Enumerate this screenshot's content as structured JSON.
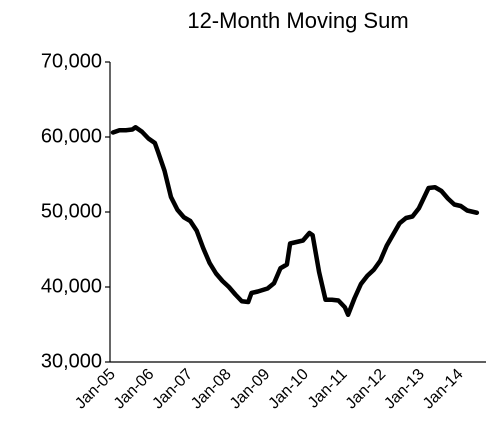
{
  "chart_data": {
    "type": "line",
    "title": "12-Month Moving Sum",
    "categories": [
      "Jan-05",
      null,
      null,
      null,
      null,
      null,
      null,
      null,
      null,
      null,
      null,
      null,
      "Jan-06",
      null,
      null,
      null,
      null,
      null,
      null,
      null,
      null,
      null,
      null,
      null,
      "Jan-07",
      null,
      null,
      null,
      null,
      null,
      null,
      null,
      null,
      null,
      null,
      null,
      "Jan-08",
      null,
      null,
      null,
      null,
      null,
      null,
      null,
      null,
      null,
      null,
      null,
      "Jan-09",
      null,
      null,
      null,
      null,
      null,
      null,
      null,
      null,
      null,
      null,
      null,
      "Jan-10",
      null,
      null,
      null,
      null,
      null,
      null,
      null,
      null,
      null,
      null,
      null,
      "Jan-11",
      null,
      null,
      null,
      null,
      null,
      null,
      null,
      null,
      null,
      null,
      null,
      "Jan-12",
      null,
      null,
      null,
      null,
      null,
      null,
      null,
      null,
      null,
      null,
      null,
      "Jan-13",
      null,
      null,
      null,
      null,
      null,
      null,
      null,
      null,
      null,
      null,
      null,
      "Jan-14",
      null,
      null,
      null,
      null,
      null
    ],
    "values": [
      60600,
      60750,
      60900,
      60900,
      60900,
      60950,
      61000,
      61300,
      61000,
      60700,
      60250,
      59800,
      59500,
      59200,
      58000,
      56750,
      55500,
      53750,
      52000,
      51150,
      50300,
      49800,
      49300,
      49050,
      48800,
      48150,
      47500,
      46350,
      45200,
      44200,
      43200,
      42500,
      41800,
      41300,
      40800,
      40400,
      40000,
      39500,
      39000,
      38550,
      38100,
      38050,
      38000,
      39200,
      39300,
      39400,
      39530,
      39670,
      39800,
      40150,
      40500,
      41500,
      42500,
      42750,
      43000,
      45800,
      45900,
      46000,
      46100,
      46200,
      46700,
      47200,
      46900,
      44450,
      42000,
      40150,
      38300,
      38300,
      38300,
      38250,
      38200,
      37750,
      37300,
      36300,
      37400,
      38500,
      39450,
      40400,
      40950,
      41500,
      41900,
      42300,
      42900,
      43500,
      44500,
      45500,
      46250,
      47000,
      47750,
      48500,
      48850,
      49200,
      49300,
      49400,
      49950,
      50500,
      51400,
      52300,
      53200,
      53250,
      53300,
      53050,
      52800,
      52300,
      51800,
      51400,
      51000,
      50900,
      50800,
      50500,
      50200,
      50100,
      50000,
      49900
    ],
    "color": "#000000",
    "ylim": [
      30000,
      70000
    ],
    "yticks": [
      {
        "value": 30000,
        "label": "30,000"
      },
      {
        "value": 40000,
        "label": "40,000"
      },
      {
        "value": 50000,
        "label": "50,000"
      },
      {
        "value": 60000,
        "label": "60,000"
      },
      {
        "value": 70000,
        "label": "70,000"
      }
    ],
    "grid": false
  }
}
